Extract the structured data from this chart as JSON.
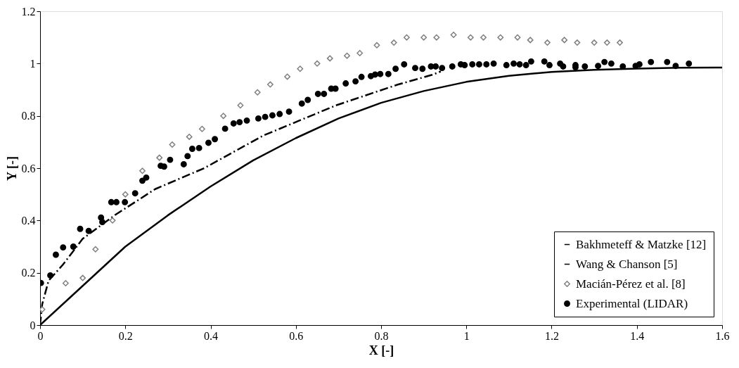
{
  "chart_data": {
    "type": "line",
    "xlabel": "X [-]",
    "ylabel": "Y [-]",
    "xlim": [
      0,
      1.6
    ],
    "ylim": [
      0,
      1.2
    ],
    "xticks": [
      0,
      0.2,
      0.4,
      0.6,
      0.8,
      1,
      1.2,
      1.4,
      1.6
    ],
    "yticks": [
      0,
      0.2,
      0.4,
      0.6,
      0.8,
      1,
      1.2
    ],
    "grid": false,
    "legend": "bottom right",
    "series": [
      {
        "name": "Bakhmeteff & Matzke [12]",
        "color": "#000000",
        "line_style": "solid",
        "marker": "none",
        "x": [
          0,
          0.1,
          0.2,
          0.3,
          0.4,
          0.5,
          0.6,
          0.7,
          0.8,
          0.9,
          1.0,
          1.1,
          1.2,
          1.3,
          1.4,
          1.5,
          1.6
        ],
        "values": [
          0,
          0.15,
          0.3,
          0.42,
          0.53,
          0.63,
          0.715,
          0.79,
          0.85,
          0.895,
          0.93,
          0.953,
          0.968,
          0.976,
          0.981,
          0.984,
          0.985
        ]
      },
      {
        "name": "Wang & Chanson [5]",
        "color": "#000000",
        "line_style": "dashdot",
        "marker": "none",
        "x": [
          0,
          0.005,
          0.02,
          0.053,
          0.1,
          0.175,
          0.27,
          0.385,
          0.524,
          0.694,
          0.836,
          0.92,
          0.94
        ],
        "values": [
          0,
          0.08,
          0.17,
          0.23,
          0.33,
          0.42,
          0.52,
          0.6,
          0.725,
          0.84,
          0.918,
          0.957,
          0.97
        ]
      },
      {
        "name": "Macián-Pérez et al. [8]",
        "type": "scatter",
        "color": "#808080",
        "marker": "diamond",
        "x": [
          0.005,
          0.06,
          0.1,
          0.13,
          0.17,
          0.2,
          0.24,
          0.28,
          0.31,
          0.35,
          0.38,
          0.43,
          0.47,
          0.51,
          0.54,
          0.58,
          0.61,
          0.65,
          0.68,
          0.72,
          0.75,
          0.79,
          0.83,
          0.86,
          0.9,
          0.93,
          0.97,
          1.01,
          1.04,
          1.08,
          1.12,
          1.15,
          1.19,
          1.23,
          1.26,
          1.3,
          1.33,
          1.36
        ],
        "values": [
          0.06,
          0.16,
          0.18,
          0.29,
          0.4,
          0.5,
          0.59,
          0.64,
          0.69,
          0.72,
          0.75,
          0.8,
          0.84,
          0.89,
          0.92,
          0.95,
          0.98,
          1.0,
          1.02,
          1.03,
          1.04,
          1.07,
          1.08,
          1.1,
          1.1,
          1.1,
          1.11,
          1.1,
          1.1,
          1.1,
          1.1,
          1.09,
          1.08,
          1.09,
          1.08,
          1.08,
          1.08,
          1.08
        ]
      },
      {
        "name": "Experimental (LIDAR)",
        "type": "scatter",
        "color": "#000000",
        "marker": "circle",
        "x": [
          0.002,
          0.024,
          0.037,
          0.054,
          0.078,
          0.094,
          0.114,
          0.143,
          0.146,
          0.167,
          0.179,
          0.199,
          0.223,
          0.24,
          0.249,
          0.283,
          0.291,
          0.305,
          0.337,
          0.346,
          0.357,
          0.373,
          0.395,
          0.41,
          0.434,
          0.454,
          0.468,
          0.485,
          0.512,
          0.528,
          0.545,
          0.562,
          0.584,
          0.614,
          0.628,
          0.652,
          0.666,
          0.683,
          0.693,
          0.717,
          0.74,
          0.754,
          0.776,
          0.786,
          0.798,
          0.817,
          0.834,
          0.854,
          0.88,
          0.897,
          0.917,
          0.928,
          0.943,
          0.967,
          0.987,
          0.996,
          1.014,
          1.03,
          1.047,
          1.064,
          1.094,
          1.111,
          1.125,
          1.14,
          1.152,
          1.183,
          1.195,
          1.22,
          1.227,
          1.256,
          1.256,
          1.278,
          1.309,
          1.324,
          1.34,
          1.367,
          1.397,
          1.406,
          1.433,
          1.471,
          1.491,
          1.522
        ],
        "values": [
          0.161,
          0.19,
          0.269,
          0.297,
          0.3,
          0.368,
          0.36,
          0.411,
          0.394,
          0.47,
          0.47,
          0.47,
          0.504,
          0.552,
          0.564,
          0.609,
          0.606,
          0.632,
          0.615,
          0.646,
          0.674,
          0.677,
          0.697,
          0.711,
          0.751,
          0.771,
          0.776,
          0.782,
          0.79,
          0.796,
          0.802,
          0.807,
          0.816,
          0.847,
          0.861,
          0.884,
          0.884,
          0.904,
          0.904,
          0.924,
          0.932,
          0.949,
          0.952,
          0.958,
          0.96,
          0.96,
          0.98,
          0.997,
          0.983,
          0.98,
          0.989,
          0.989,
          0.983,
          0.989,
          0.997,
          0.994,
          0.997,
          0.997,
          0.997,
          1.0,
          0.994,
          1.0,
          0.997,
          0.994,
          1.008,
          1.008,
          0.994,
          1.0,
          0.989,
          0.994,
          0.986,
          0.989,
          0.991,
          1.006,
          1.0,
          0.989,
          0.991,
          0.997,
          1.006,
          1.006,
          0.991,
          1.0
        ]
      }
    ]
  }
}
